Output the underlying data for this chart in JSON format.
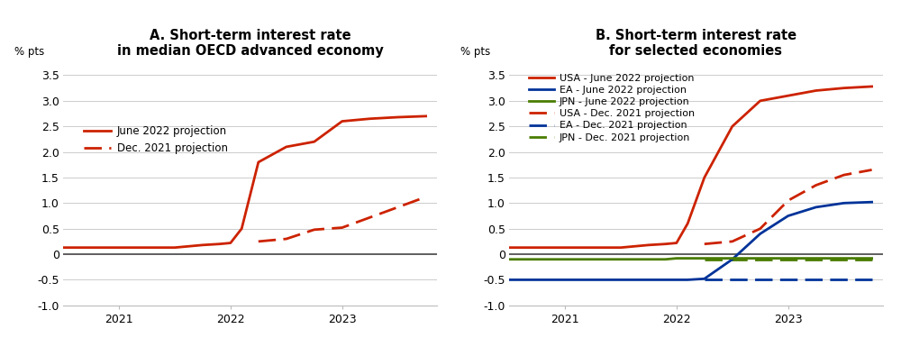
{
  "title_A": "A. Short-term interest rate\nin median OECD advanced economy",
  "title_B": "B. Short-term interest rate\nfor selected economies",
  "ylabel": "% pts",
  "ylim_A": [
    -1.0,
    3.75
  ],
  "ylim_B": [
    -1.0,
    3.75
  ],
  "yticks": [
    -1.0,
    -0.5,
    0.0,
    0.5,
    1.0,
    1.5,
    2.0,
    2.5,
    3.0,
    3.5
  ],
  "background_color": "#ffffff",
  "zero_line_color": "#555555",
  "x_A": [
    2020.5,
    2020.75,
    2021.0,
    2021.25,
    2021.5,
    2021.75,
    2021.9,
    2022.0,
    2022.1,
    2022.25,
    2022.5,
    2022.75,
    2023.0,
    2023.25,
    2023.5,
    2023.75
  ],
  "june2022_A": [
    0.13,
    0.13,
    0.13,
    0.13,
    0.13,
    0.18,
    0.2,
    0.22,
    0.5,
    1.8,
    2.1,
    2.2,
    2.6,
    2.65,
    2.68,
    2.7
  ],
  "dec2021_A": [
    null,
    null,
    null,
    null,
    null,
    null,
    null,
    0.2,
    null,
    0.25,
    0.3,
    0.48,
    0.52,
    0.72,
    0.92,
    1.12
  ],
  "x_B": [
    2020.5,
    2020.75,
    2021.0,
    2021.25,
    2021.5,
    2021.75,
    2021.9,
    2022.0,
    2022.1,
    2022.25,
    2022.5,
    2022.75,
    2023.0,
    2023.25,
    2023.5,
    2023.75
  ],
  "usa_june2022": [
    0.13,
    0.13,
    0.13,
    0.13,
    0.13,
    0.18,
    0.2,
    0.22,
    0.6,
    1.5,
    2.5,
    3.0,
    3.1,
    3.2,
    3.25,
    3.28
  ],
  "ea_june2022": [
    -0.5,
    -0.5,
    -0.5,
    -0.5,
    -0.5,
    -0.5,
    -0.5,
    -0.5,
    -0.5,
    -0.48,
    -0.1,
    0.4,
    0.75,
    0.92,
    1.0,
    1.02
  ],
  "jpn_june2022": [
    -0.1,
    -0.1,
    -0.1,
    -0.1,
    -0.1,
    -0.1,
    -0.1,
    -0.08,
    -0.08,
    -0.08,
    -0.08,
    -0.08,
    -0.08,
    -0.08,
    -0.08,
    -0.08
  ],
  "usa_dec2021": [
    null,
    null,
    null,
    null,
    null,
    null,
    null,
    0.13,
    null,
    0.2,
    0.25,
    0.5,
    1.05,
    1.35,
    1.55,
    1.65
  ],
  "ea_dec2021": [
    null,
    null,
    null,
    null,
    null,
    null,
    null,
    -0.5,
    null,
    -0.5,
    -0.5,
    -0.5,
    -0.5,
    -0.5,
    -0.5,
    -0.5
  ],
  "jpn_dec2021": [
    null,
    null,
    null,
    null,
    null,
    null,
    null,
    -0.1,
    null,
    -0.1,
    -0.1,
    -0.1,
    -0.1,
    -0.1,
    -0.1,
    -0.1
  ],
  "color_red": "#cc2200",
  "color_blue": "#003399",
  "color_green": "#4a7c00",
  "xtick_positions": [
    2021.0,
    2022.0,
    2023.0
  ],
  "xtick_labels": [
    "2021",
    "2022",
    "2023"
  ],
  "xlim": [
    2020.5,
    2023.85
  ],
  "legend_A": [
    "June 2022 projection",
    "Dec. 2021 projection"
  ],
  "legend_B": [
    "USA - June 2022 projection",
    "EA - June 2022 projection",
    "JPN - June 2022 projection",
    "USA - Dec. 2021 projection",
    "EA - Dec. 2021 projection",
    "JPN - Dec. 2021 projection"
  ]
}
